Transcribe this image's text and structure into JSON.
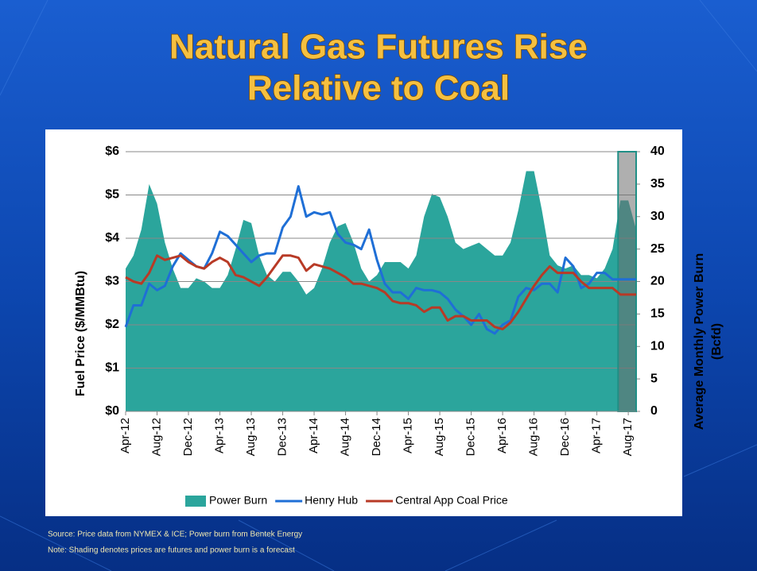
{
  "title": [
    "Natural Gas Futures Rise",
    "Relative to Coal"
  ],
  "notes": [
    "Source: Price data from NYMEX & ICE;  Power burn from Bentek Energy",
    "Note: Shading denotes prices are futures and power burn is a forecast"
  ],
  "chart_data": {
    "type": "line",
    "ylabel": "Fuel Price ($/MMBtu)",
    "y2label": [
      "Average Monthly Power Burn",
      "(Bcfd)"
    ],
    "categories": [
      "Apr-12",
      null,
      null,
      null,
      "Aug-12",
      null,
      null,
      null,
      "Dec-12",
      null,
      null,
      null,
      "Apr-13",
      null,
      null,
      null,
      "Aug-13",
      null,
      null,
      null,
      "Dec-13",
      null,
      null,
      null,
      "Apr-14",
      null,
      null,
      null,
      "Aug-14",
      null,
      null,
      null,
      "Dec-14",
      null,
      null,
      null,
      "Apr-15",
      null,
      null,
      null,
      "Aug-15",
      null,
      null,
      null,
      "Dec-15",
      null,
      null,
      null,
      "Apr-16",
      null,
      null,
      null,
      "Aug-16",
      null,
      null,
      null,
      "Dec-16",
      null,
      null,
      null,
      "Apr-17",
      null,
      null,
      null,
      "Aug-17",
      null
    ],
    "ylim": [
      0,
      6
    ],
    "yticks": [
      {
        "value": 0,
        "label": "$0"
      },
      {
        "value": 1,
        "label": "$1"
      },
      {
        "value": 2,
        "label": "$2"
      },
      {
        "value": 3,
        "label": "$3"
      },
      {
        "value": 4,
        "label": "$4"
      },
      {
        "value": 5,
        "label": "$5"
      },
      {
        "value": 6,
        "label": "$6"
      }
    ],
    "y2lim": [
      0,
      40
    ],
    "y2ticks": [
      0,
      5,
      10,
      15,
      20,
      25,
      30,
      35,
      40
    ],
    "grid": true,
    "series": [
      {
        "name": "Power Burn",
        "type": "area",
        "axis": "y2",
        "color": "#2ba59c",
        "values": [
          22,
          24,
          28,
          35,
          32,
          26,
          22,
          19,
          19,
          20.5,
          20,
          19,
          19,
          21,
          25,
          29.5,
          29,
          24,
          21,
          20,
          21.5,
          21.5,
          20,
          18,
          19,
          22,
          26,
          28.5,
          29,
          26,
          22,
          20,
          21,
          23,
          23,
          23,
          22,
          24,
          30,
          33.5,
          33,
          30,
          26,
          25,
          25.5,
          26,
          25,
          24,
          24,
          26,
          31,
          37,
          37,
          31,
          24,
          22.5,
          22,
          22.5,
          21,
          21,
          20.5,
          22,
          25,
          32.5,
          32.5,
          28
        ]
      },
      {
        "name": "Henry Hub",
        "type": "line",
        "color": "#1f6fd6",
        "values": [
          1.95,
          2.45,
          2.45,
          2.95,
          2.8,
          2.9,
          3.35,
          3.65,
          3.5,
          3.35,
          3.3,
          3.65,
          4.15,
          4.05,
          3.85,
          3.65,
          3.45,
          3.6,
          3.65,
          3.65,
          4.25,
          4.5,
          5.2,
          4.5,
          4.6,
          4.55,
          4.6,
          4.1,
          3.9,
          3.85,
          3.75,
          4.2,
          3.5,
          2.95,
          2.75,
          2.75,
          2.6,
          2.85,
          2.8,
          2.8,
          2.75,
          2.6,
          2.35,
          2.2,
          2.0,
          2.25,
          1.9,
          1.8,
          2.0,
          2.1,
          2.65,
          2.85,
          2.8,
          2.95,
          2.95,
          2.75,
          3.55,
          3.35,
          2.85,
          2.95,
          3.2,
          3.2,
          3.05,
          3.05,
          3.05,
          3.05
        ]
      },
      {
        "name": "Central App Coal Price",
        "type": "line",
        "color": "#b83a26",
        "values": [
          3.1,
          3.0,
          2.95,
          3.2,
          3.6,
          3.5,
          3.55,
          3.6,
          3.45,
          3.35,
          3.3,
          3.45,
          3.55,
          3.45,
          3.15,
          3.1,
          3.0,
          2.9,
          3.1,
          3.35,
          3.6,
          3.6,
          3.55,
          3.25,
          3.4,
          3.35,
          3.3,
          3.2,
          3.1,
          2.95,
          2.95,
          2.9,
          2.85,
          2.75,
          2.55,
          2.5,
          2.5,
          2.45,
          2.3,
          2.4,
          2.4,
          2.1,
          2.2,
          2.2,
          2.1,
          2.1,
          2.1,
          1.95,
          1.9,
          2.05,
          2.3,
          2.6,
          2.9,
          3.15,
          3.35,
          3.2,
          3.2,
          3.2,
          3.0,
          2.85,
          2.85,
          2.85,
          2.85,
          2.7,
          2.7,
          2.7
        ]
      }
    ]
  }
}
